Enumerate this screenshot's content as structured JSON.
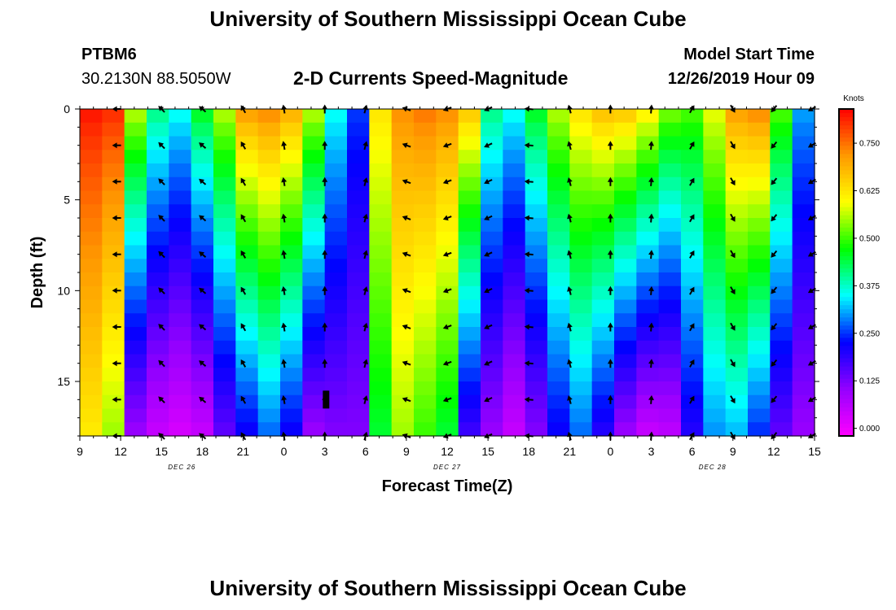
{
  "header": {
    "top_title": "University of Southern Mississippi Ocean Cube",
    "bottom_title": "University of Southern Mississippi Ocean Cube",
    "station_id": "PTBM6",
    "station_coords": "30.2130N 88.5050W",
    "model_start_label": "Model Start Time",
    "model_start_value": "12/26/2019 Hour 09"
  },
  "colors": {
    "background": "#ffffff",
    "arrow": "#000000",
    "colormap": [
      "#ff00ff",
      "#9400ff",
      "#0000ff",
      "#00ffff",
      "#00ff00",
      "#ffff00",
      "#ff9900",
      "#ff0000"
    ]
  },
  "chart_data": {
    "type": "heatmap",
    "title": "2-D Currents Speed-Magnitude",
    "xlabel": "Forecast Time(Z)",
    "ylabel": "Depth (ft)",
    "x_ticks": [
      "9",
      "12",
      "15",
      "18",
      "21",
      "0",
      "3",
      "6",
      "9",
      "12",
      "15",
      "18",
      "21",
      "0",
      "3",
      "6",
      "9",
      "12",
      "15"
    ],
    "x_range_hours": [
      0,
      54
    ],
    "date_labels": [
      {
        "text": "DEC 26",
        "hour": 7.5
      },
      {
        "text": "DEC 27",
        "hour": 27
      },
      {
        "text": "DEC 28",
        "hour": 46.5
      }
    ],
    "y_ticks": [
      0,
      5,
      10,
      15
    ],
    "ylim": [
      0,
      18
    ],
    "y_inverted": true,
    "colorbar": {
      "title": "Knots",
      "range": [
        -0.02,
        0.84
      ],
      "ticks": [
        "0.000",
        "0.125",
        "0.250",
        "0.375",
        "0.500",
        "0.625",
        "0.750"
      ]
    },
    "surface_speed_knots": [
      0.82,
      0.8,
      0.55,
      0.4,
      0.35,
      0.45,
      0.55,
      0.7,
      0.72,
      0.68,
      0.55,
      0.35,
      0.25,
      0.62,
      0.72,
      0.74,
      0.72,
      0.65,
      0.4,
      0.35,
      0.45,
      0.55,
      0.62,
      0.66,
      0.65,
      0.6,
      0.52,
      0.5,
      0.58,
      0.7,
      0.72,
      0.5,
      0.3
    ],
    "bottom_speed_knots": [
      0.62,
      0.55,
      0.1,
      0.05,
      0.03,
      0.05,
      0.15,
      0.22,
      0.28,
      0.22,
      0.1,
      0.12,
      0.12,
      0.45,
      0.55,
      0.5,
      0.45,
      0.18,
      0.1,
      0.05,
      0.12,
      0.22,
      0.28,
      0.2,
      0.1,
      0.05,
      0.06,
      0.2,
      0.3,
      0.32,
      0.25,
      0.15,
      0.1
    ],
    "arrow_hours": [
      2.7,
      6.0,
      9.0,
      12.0,
      15.0,
      18.0,
      21.0,
      24.0,
      27.0,
      30.0,
      33.0,
      36.0,
      39.0,
      42.0,
      45.0,
      48.0,
      51.0,
      53.8
    ],
    "arrow_depths_ft": [
      0,
      2,
      4,
      6,
      8,
      10,
      12,
      14,
      16,
      18
    ],
    "arrow_direction_deg_by_column": [
      270,
      315,
      310,
      330,
      350,
      0,
      15,
      290,
      250,
      245,
      275,
      345,
      0,
      5,
      30,
      150,
      220,
      240
    ],
    "flagged_point": {
      "hour": 18.1,
      "depth_ft": 16
    }
  }
}
